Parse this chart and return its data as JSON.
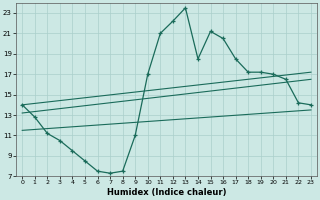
{
  "xlabel": "Humidex (Indice chaleur)",
  "ylabel": "",
  "xlim": [
    -0.5,
    23.5
  ],
  "ylim": [
    7,
    24
  ],
  "yticks": [
    7,
    9,
    11,
    13,
    15,
    17,
    19,
    21,
    23
  ],
  "xticks": [
    0,
    1,
    2,
    3,
    4,
    5,
    6,
    7,
    8,
    9,
    10,
    11,
    12,
    13,
    14,
    15,
    16,
    17,
    18,
    19,
    20,
    21,
    22,
    23
  ],
  "background_color": "#cce8e4",
  "grid_color": "#aacfcb",
  "line_color": "#1a6b5a",
  "line1_x": [
    0,
    1,
    2,
    3,
    4,
    5,
    6,
    7,
    8,
    9,
    10,
    11,
    12,
    13,
    14,
    15,
    16,
    17,
    18,
    19,
    20,
    21,
    22,
    23
  ],
  "line1_y": [
    14.0,
    12.8,
    11.2,
    10.5,
    9.5,
    8.5,
    7.5,
    7.3,
    7.5,
    11.0,
    17.0,
    21.0,
    22.2,
    23.5,
    18.5,
    21.2,
    20.5,
    18.5,
    17.2,
    17.2,
    17.0,
    16.5,
    14.2,
    14.0
  ],
  "band_line1_x": [
    0,
    23
  ],
  "band_line1_y": [
    14.0,
    17.2
  ],
  "band_line2_x": [
    0,
    23
  ],
  "band_line2_y": [
    13.2,
    16.5
  ],
  "band_line3_x": [
    0,
    23
  ],
  "band_line3_y": [
    11.5,
    13.5
  ]
}
